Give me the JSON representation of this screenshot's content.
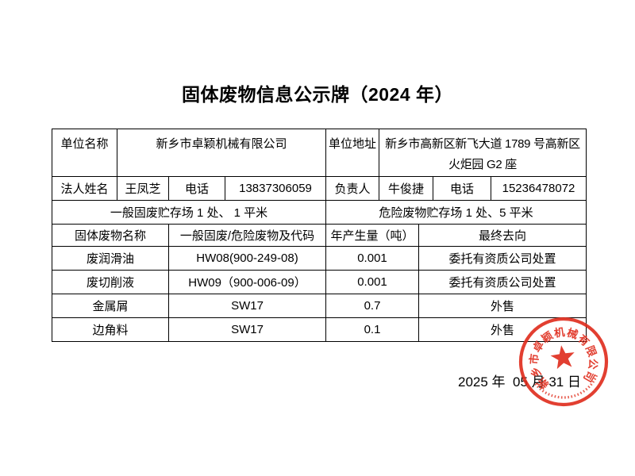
{
  "title": "固体废物信息公示牌（2024 年）",
  "info_table": {
    "unit_name_label": "单位名称",
    "unit_name": "新乡市卓颖机械有限公司",
    "unit_address_label": "单位地址",
    "unit_address": "新乡市高新区新飞大道 1789 号高新区火炬园 G2 座",
    "legal_name_label": "法人姓名",
    "legal_name": "王凤芝",
    "legal_phone_label": "电话",
    "legal_phone": "13837306059",
    "manager_label": "负责人",
    "manager_name": "牛俊捷",
    "manager_phone_label": "电话",
    "manager_phone": "15236478072",
    "general_storage": "一般固废贮存场 1 处、 1 平米",
    "hazard_storage": "危险废物贮存场 1 处、5 平米",
    "waste_headers": [
      "固体废物名称",
      "一般固废/危险废物及代码",
      "年产生量（吨）",
      "最终去向"
    ],
    "waste_rows": [
      [
        "废润滑油",
        "HW08(900-249-08)",
        "0.001",
        "委托有资质公司处置"
      ],
      [
        "废切削液",
        "HW09（900-006-09）",
        "0.001",
        "委托有资质公司处置"
      ],
      [
        "金属屑",
        "SW17",
        "0.7",
        "外售"
      ],
      [
        "边角料",
        "SW17",
        "0.1",
        "外售"
      ]
    ]
  },
  "footer": {
    "date": "2025 年  05 月 31 日"
  },
  "stamp": {
    "company": "新乡市卓颖机械有限公司",
    "color": "#df2b1b"
  }
}
